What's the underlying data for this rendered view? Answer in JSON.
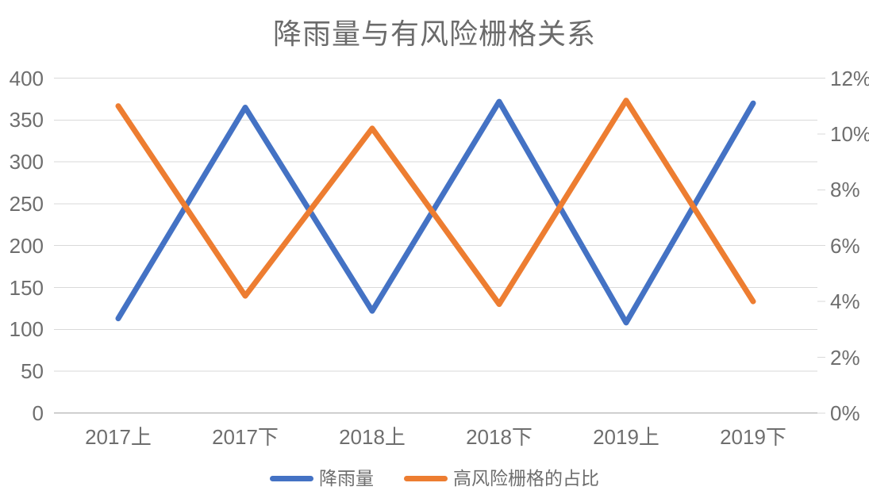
{
  "title": "降雨量与有风险栅格关系",
  "chart_data": {
    "type": "line",
    "title": "降雨量与有风险栅格关系",
    "categories": [
      "2017上",
      "2017下",
      "2018上",
      "2018下",
      "2019上",
      "2019下"
    ],
    "series": [
      {
        "name": "降雨量",
        "axis": "left",
        "color": "#4472C4",
        "values": [
          113,
          365,
          122,
          372,
          108,
          370
        ]
      },
      {
        "name": "高风险栅格的占比",
        "axis": "right",
        "color": "#ED7D31",
        "unit": "%",
        "values": [
          11.0,
          4.2,
          10.2,
          3.9,
          11.2,
          4.0
        ]
      }
    ],
    "left_axis": {
      "min": 0,
      "max": 400,
      "step": 50,
      "tick_labels": [
        "0",
        "50",
        "100",
        "150",
        "200",
        "250",
        "300",
        "350",
        "400"
      ]
    },
    "right_axis": {
      "min": 0,
      "max": 12,
      "step": 2,
      "tick_labels": [
        "0%",
        "2%",
        "4%",
        "6%",
        "8%",
        "10%",
        "12%"
      ]
    },
    "grid": "horizontal",
    "legend_position": "bottom",
    "colors": {
      "gridline": "#D9D9D9",
      "axis_line": "#BFBFBF",
      "text": "#6E6E6E"
    }
  }
}
